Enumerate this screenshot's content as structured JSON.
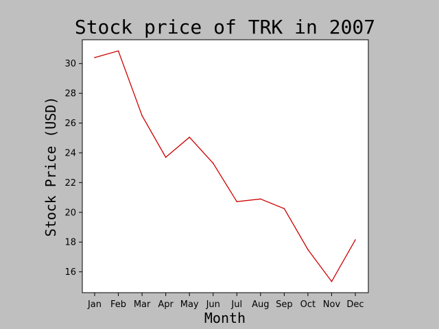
{
  "chart_data": {
    "type": "line",
    "title": "Stock price of TRK in 2007",
    "xlabel": "Month",
    "ylabel": "Stock Price (USD)",
    "categories": [
      "Jan",
      "Feb",
      "Mar",
      "Apr",
      "May",
      "Jun",
      "Jul",
      "Aug",
      "Sep",
      "Oct",
      "Nov",
      "Dec"
    ],
    "series": [
      {
        "values": [
          30.4,
          30.85,
          26.5,
          23.7,
          25.05,
          23.3,
          20.72,
          20.9,
          20.25,
          17.5,
          15.35,
          18.15
        ],
        "color": "#cc0000"
      }
    ],
    "ylim": [
      14.6,
      31.6
    ],
    "yticks": [
      16,
      18,
      20,
      22,
      24,
      26,
      28,
      30
    ],
    "grid": false,
    "legend": "none"
  },
  "colors": {
    "figure_background": "#bfbfbf",
    "plot_background": "#ffffff",
    "line": "#cc0000"
  }
}
